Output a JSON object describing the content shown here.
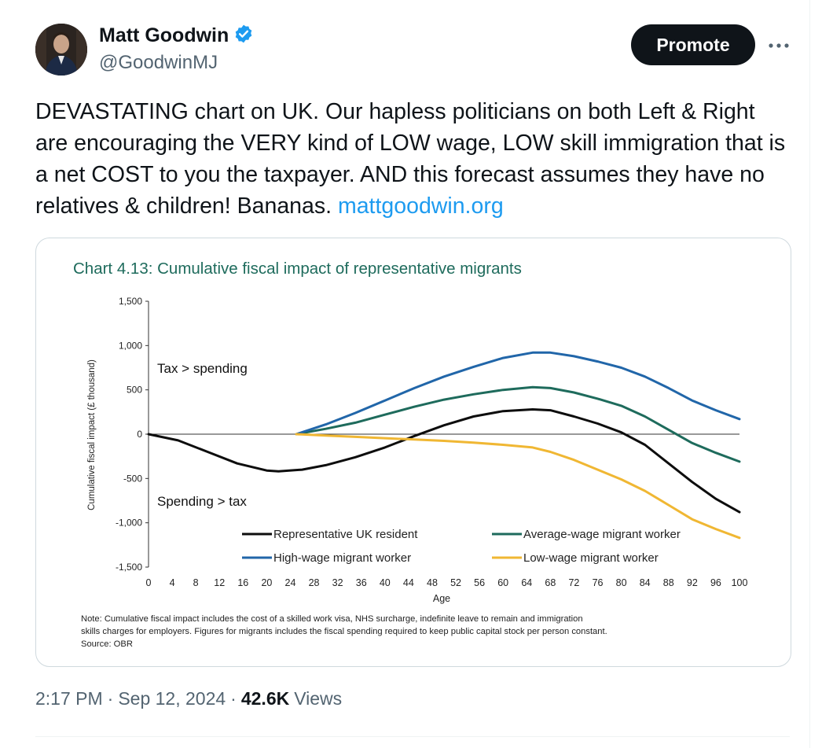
{
  "author": {
    "name": "Matt Goodwin",
    "handle": "@GoodwinMJ",
    "verified": true,
    "accent": "#1d9bf0"
  },
  "actions": {
    "promote_label": "Promote",
    "more_icon": "more-icon"
  },
  "tweet": {
    "text": "DEVASTATING chart on UK. Our hapless politicians on both Left & Right are encouraging the VERY kind of LOW wage, LOW skill immigration that is a net COST to you the taxpayer. AND this forecast assumes they have no relatives & children! Bananas. ",
    "link": "mattgoodwin.org"
  },
  "meta": {
    "time": "2:17 PM",
    "date": "Sep 12, 2024",
    "views_count": "42.6K",
    "views_label": "Views",
    "separator": "·"
  },
  "chart_data": {
    "type": "line",
    "title": "Chart 4.13: Cumulative fiscal impact of representative migrants",
    "xlabel": "Age",
    "ylabel": "Cumulative fiscal impact (£ thousand)",
    "xlim": [
      0,
      100
    ],
    "ylim": [
      -1500,
      1500
    ],
    "x_ticks": [
      "0",
      "4",
      "8",
      "12",
      "16",
      "20",
      "24",
      "28",
      "32",
      "36",
      "40",
      "44",
      "48",
      "52",
      "56",
      "60",
      "64",
      "68",
      "72",
      "76",
      "80",
      "84",
      "88",
      "92",
      "96",
      "100"
    ],
    "y_ticks": [
      "1,500",
      "1,000",
      "500",
      "0",
      "-500",
      "-1,000",
      "-1,500"
    ],
    "annotations": {
      "top": "Tax > spending",
      "bottom": "Spending > tax"
    },
    "note": [
      "Note: Cumulative fiscal impact includes the cost of a skilled work visa, NHS surcharge, indefinite leave to remain and immigration",
      "skills charges for employers. Figures for migrants includes the fiscal spending required to keep public capital stock per person constant.",
      "Source: OBR"
    ],
    "series": [
      {
        "name": "Representative UK resident",
        "color": "#0d0d0d",
        "x": [
          0,
          5,
          10,
          15,
          20,
          22,
          26,
          30,
          35,
          40,
          45,
          50,
          55,
          60,
          65,
          68,
          72,
          76,
          80,
          84,
          88,
          92,
          96,
          100
        ],
        "y": [
          0,
          -70,
          -200,
          -330,
          -410,
          -420,
          -400,
          -350,
          -260,
          -150,
          -20,
          100,
          200,
          260,
          280,
          270,
          200,
          120,
          20,
          -120,
          -330,
          -540,
          -730,
          -880
        ]
      },
      {
        "name": "Average-wage migrant worker",
        "color": "#1e6b5c",
        "x": [
          25,
          30,
          35,
          40,
          45,
          50,
          55,
          60,
          65,
          68,
          72,
          76,
          80,
          84,
          88,
          92,
          96,
          100
        ],
        "y": [
          0,
          60,
          130,
          220,
          310,
          390,
          450,
          500,
          530,
          520,
          470,
          400,
          320,
          200,
          50,
          -100,
          -210,
          -310
        ]
      },
      {
        "name": "High-wage migrant worker",
        "color": "#2166a9",
        "x": [
          25,
          30,
          35,
          40,
          45,
          50,
          55,
          60,
          65,
          68,
          72,
          76,
          80,
          84,
          88,
          92,
          96,
          100
        ],
        "y": [
          0,
          110,
          240,
          380,
          520,
          650,
          760,
          860,
          920,
          920,
          880,
          820,
          750,
          650,
          520,
          380,
          270,
          170
        ]
      },
      {
        "name": "Low-wage migrant worker",
        "color": "#f0b733",
        "x": [
          25,
          30,
          35,
          40,
          45,
          50,
          55,
          60,
          65,
          68,
          72,
          76,
          80,
          84,
          88,
          92,
          96,
          100
        ],
        "y": [
          0,
          -15,
          -30,
          -45,
          -60,
          -75,
          -95,
          -120,
          -150,
          -200,
          -290,
          -400,
          -510,
          -640,
          -800,
          -960,
          -1070,
          -1170
        ]
      }
    ],
    "legend_layout": "two-column, bottom"
  }
}
